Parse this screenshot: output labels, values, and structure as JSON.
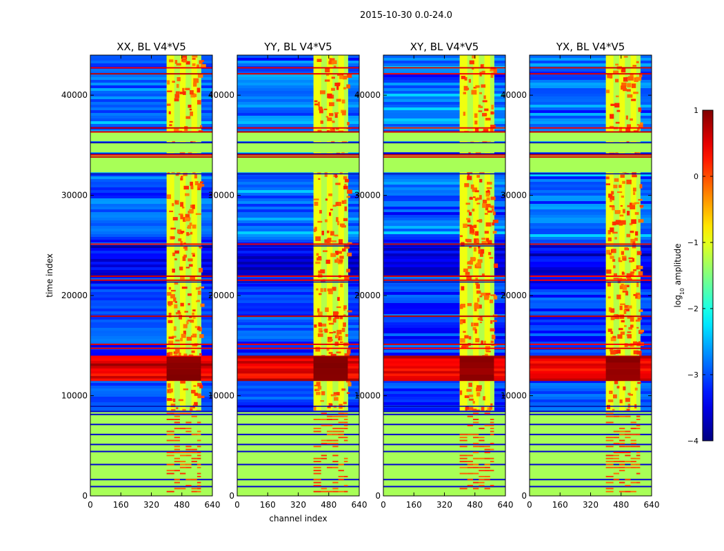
{
  "figure": {
    "suptitle": "2015-10-30 0.0-24.0"
  },
  "chart_data": {
    "type": "heatmap",
    "shared_xlabel": "channel index",
    "shared_ylabel": "time index",
    "xlim": [
      0,
      640
    ],
    "ylim": [
      0,
      44000
    ],
    "xticks": [
      0,
      160,
      320,
      480,
      640
    ],
    "yticks": [
      0,
      10000,
      20000,
      30000,
      40000
    ],
    "xtick_labels": [
      "0",
      "160",
      "320",
      "480",
      "640"
    ],
    "ytick_labels": [
      "0",
      "10000",
      "20000",
      "30000",
      "40000"
    ],
    "panels": [
      {
        "title": "XX, BL V4*V5",
        "show_ylabel": true,
        "show_xlabel": false
      },
      {
        "title": "YY, BL V4*V5",
        "show_ylabel": false,
        "show_xlabel": true
      },
      {
        "title": "XY, BL V4*V5",
        "show_ylabel": false,
        "show_xlabel": false
      },
      {
        "title": "YX, BL V4*V5",
        "show_ylabel": false,
        "show_xlabel": false
      }
    ],
    "colorbar": {
      "label": "log10 amplitude",
      "label_base": "log",
      "label_sub": "10",
      "label_rest": " amplitude",
      "range": [
        -4,
        1
      ],
      "ticks": [
        1,
        0,
        -1,
        -2,
        -3,
        -4
      ],
      "tick_labels": [
        "1",
        "0",
        "−1",
        "−2",
        "−3",
        "−4"
      ],
      "colormap": "jet"
    },
    "features": {
      "rfi_channel_range": [
        400,
        580
      ],
      "flagged_time_blocks": [
        [
          0,
          8500
        ],
        [
          32300,
          34000
        ],
        [
          34300,
          35200
        ],
        [
          35400,
          36300
        ]
      ],
      "bright_burst_time_range": [
        11500,
        13800
      ],
      "flagged_amplitude_log10": -1.3,
      "background_amplitude_log10": -3.1
    }
  }
}
